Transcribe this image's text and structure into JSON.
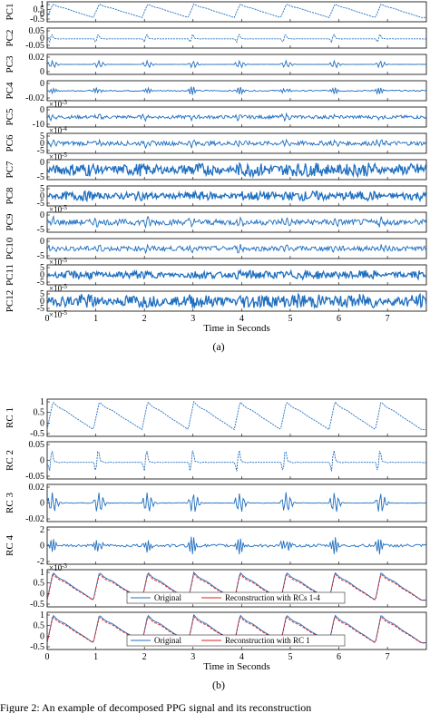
{
  "chart_data": [
    {
      "type": "line",
      "panel_label": "(a)",
      "xlabel": "Time in Seconds",
      "xlim": [
        0,
        7.8
      ],
      "xticks": [
        "0",
        "1",
        "2",
        "3",
        "4",
        "5",
        "6",
        "7"
      ],
      "series_color": "#1f6fc0",
      "rows": [
        {
          "ylabel": "PC1",
          "yticks": [
            "1",
            "0.5",
            "0",
            "-0.5"
          ],
          "exponent": "",
          "kind": "ppg",
          "amp": 1.0
        },
        {
          "ylabel": "PC2",
          "yticks": [
            "0.05",
            "0",
            "-0.05"
          ],
          "exponent": "",
          "kind": "pulse",
          "amp": 0.6
        },
        {
          "ylabel": "PC3",
          "yticks": [
            "0.02",
            "0"
          ],
          "exponent": "",
          "kind": "burst",
          "amp": 0.5
        },
        {
          "ylabel": "PC4",
          "yticks": [
            "0",
            "-0.02"
          ],
          "exponent": "×10^-3",
          "kind": "spike",
          "amp": 0.6
        },
        {
          "ylabel": "PC5",
          "yticks": [
            "0",
            "-10"
          ],
          "exponent": "×10^-4",
          "kind": "noise",
          "amp": 0.35
        },
        {
          "ylabel": "PC6",
          "yticks": [
            "5",
            "0",
            "-5"
          ],
          "exponent": "×10^-5",
          "kind": "noise",
          "amp": 0.45
        },
        {
          "ylabel": "PC7",
          "yticks": [
            "0",
            "-5"
          ],
          "exponent": "",
          "kind": "dense",
          "amp": 0.85
        },
        {
          "ylabel": "PC8",
          "yticks": [
            "5",
            "0",
            "-5"
          ],
          "exponent": "×10^-5",
          "kind": "dense",
          "amp": 0.6
        },
        {
          "ylabel": "PC9",
          "yticks": [
            "0",
            "-5"
          ],
          "exponent": "",
          "kind": "noise",
          "amp": 0.6
        },
        {
          "ylabel": "PC10",
          "yticks": [
            "0",
            "-5"
          ],
          "exponent": "×10^-5",
          "kind": "noise",
          "amp": 0.5
        },
        {
          "ylabel": "PC11",
          "yticks": [
            "5",
            "0",
            "-5"
          ],
          "exponent": "×10^-5",
          "kind": "dense",
          "amp": 0.55
        },
        {
          "ylabel": "PC12",
          "yticks": [
            "5",
            "0",
            "-5"
          ],
          "exponent": "×10^-5",
          "kind": "dense",
          "amp": 0.9
        }
      ]
    },
    {
      "type": "line",
      "panel_label": "(b)",
      "xlabel": "Time in Seconds",
      "xlim": [
        0,
        7.8
      ],
      "xticks": [
        "0",
        "1",
        "2",
        "3",
        "4",
        "5",
        "6",
        "7"
      ],
      "rows": [
        {
          "ylabel": "RC 1",
          "yticks": [
            "1",
            "0.5",
            "0",
            "-0.5"
          ],
          "exponent": "",
          "kind": "ppg",
          "amp": 1.0
        },
        {
          "ylabel": "RC 2",
          "yticks": [
            "0.05",
            "0",
            "-0.05"
          ],
          "exponent": "",
          "kind": "pulse",
          "amp": 0.8
        },
        {
          "ylabel": "RC 3",
          "yticks": [
            "0.02",
            "0",
            "-0.02"
          ],
          "exponent": "",
          "kind": "burst",
          "amp": 0.7
        },
        {
          "ylabel": "RC 4",
          "yticks": [
            "2",
            "0",
            "-2"
          ],
          "exponent": "×10^-3",
          "kind": "spike",
          "amp": 0.7
        },
        {
          "ylabel": "",
          "yticks": [
            "1",
            "0.5",
            "0",
            "-0.5"
          ],
          "exponent": "",
          "kind": "overlay",
          "amp": 1.0,
          "legend": [
            {
              "name": "Original",
              "color": "#1f6fc0"
            },
            {
              "name": "Reconstruction with RCs 1-4",
              "color": "#e0201b"
            }
          ]
        },
        {
          "ylabel": "",
          "yticks": [
            "1",
            "0.5",
            "0",
            "-0.5"
          ],
          "exponent": "",
          "kind": "overlay",
          "amp": 1.0,
          "legend": [
            {
              "name": "Original",
              "color": "#1f6fc0"
            },
            {
              "name": "Reconstruction with RC 1",
              "color": "#e0201b"
            }
          ]
        }
      ]
    }
  ],
  "caption_fragment": "Figure 2: An example of decomposed PPG signal and its reconstruction"
}
